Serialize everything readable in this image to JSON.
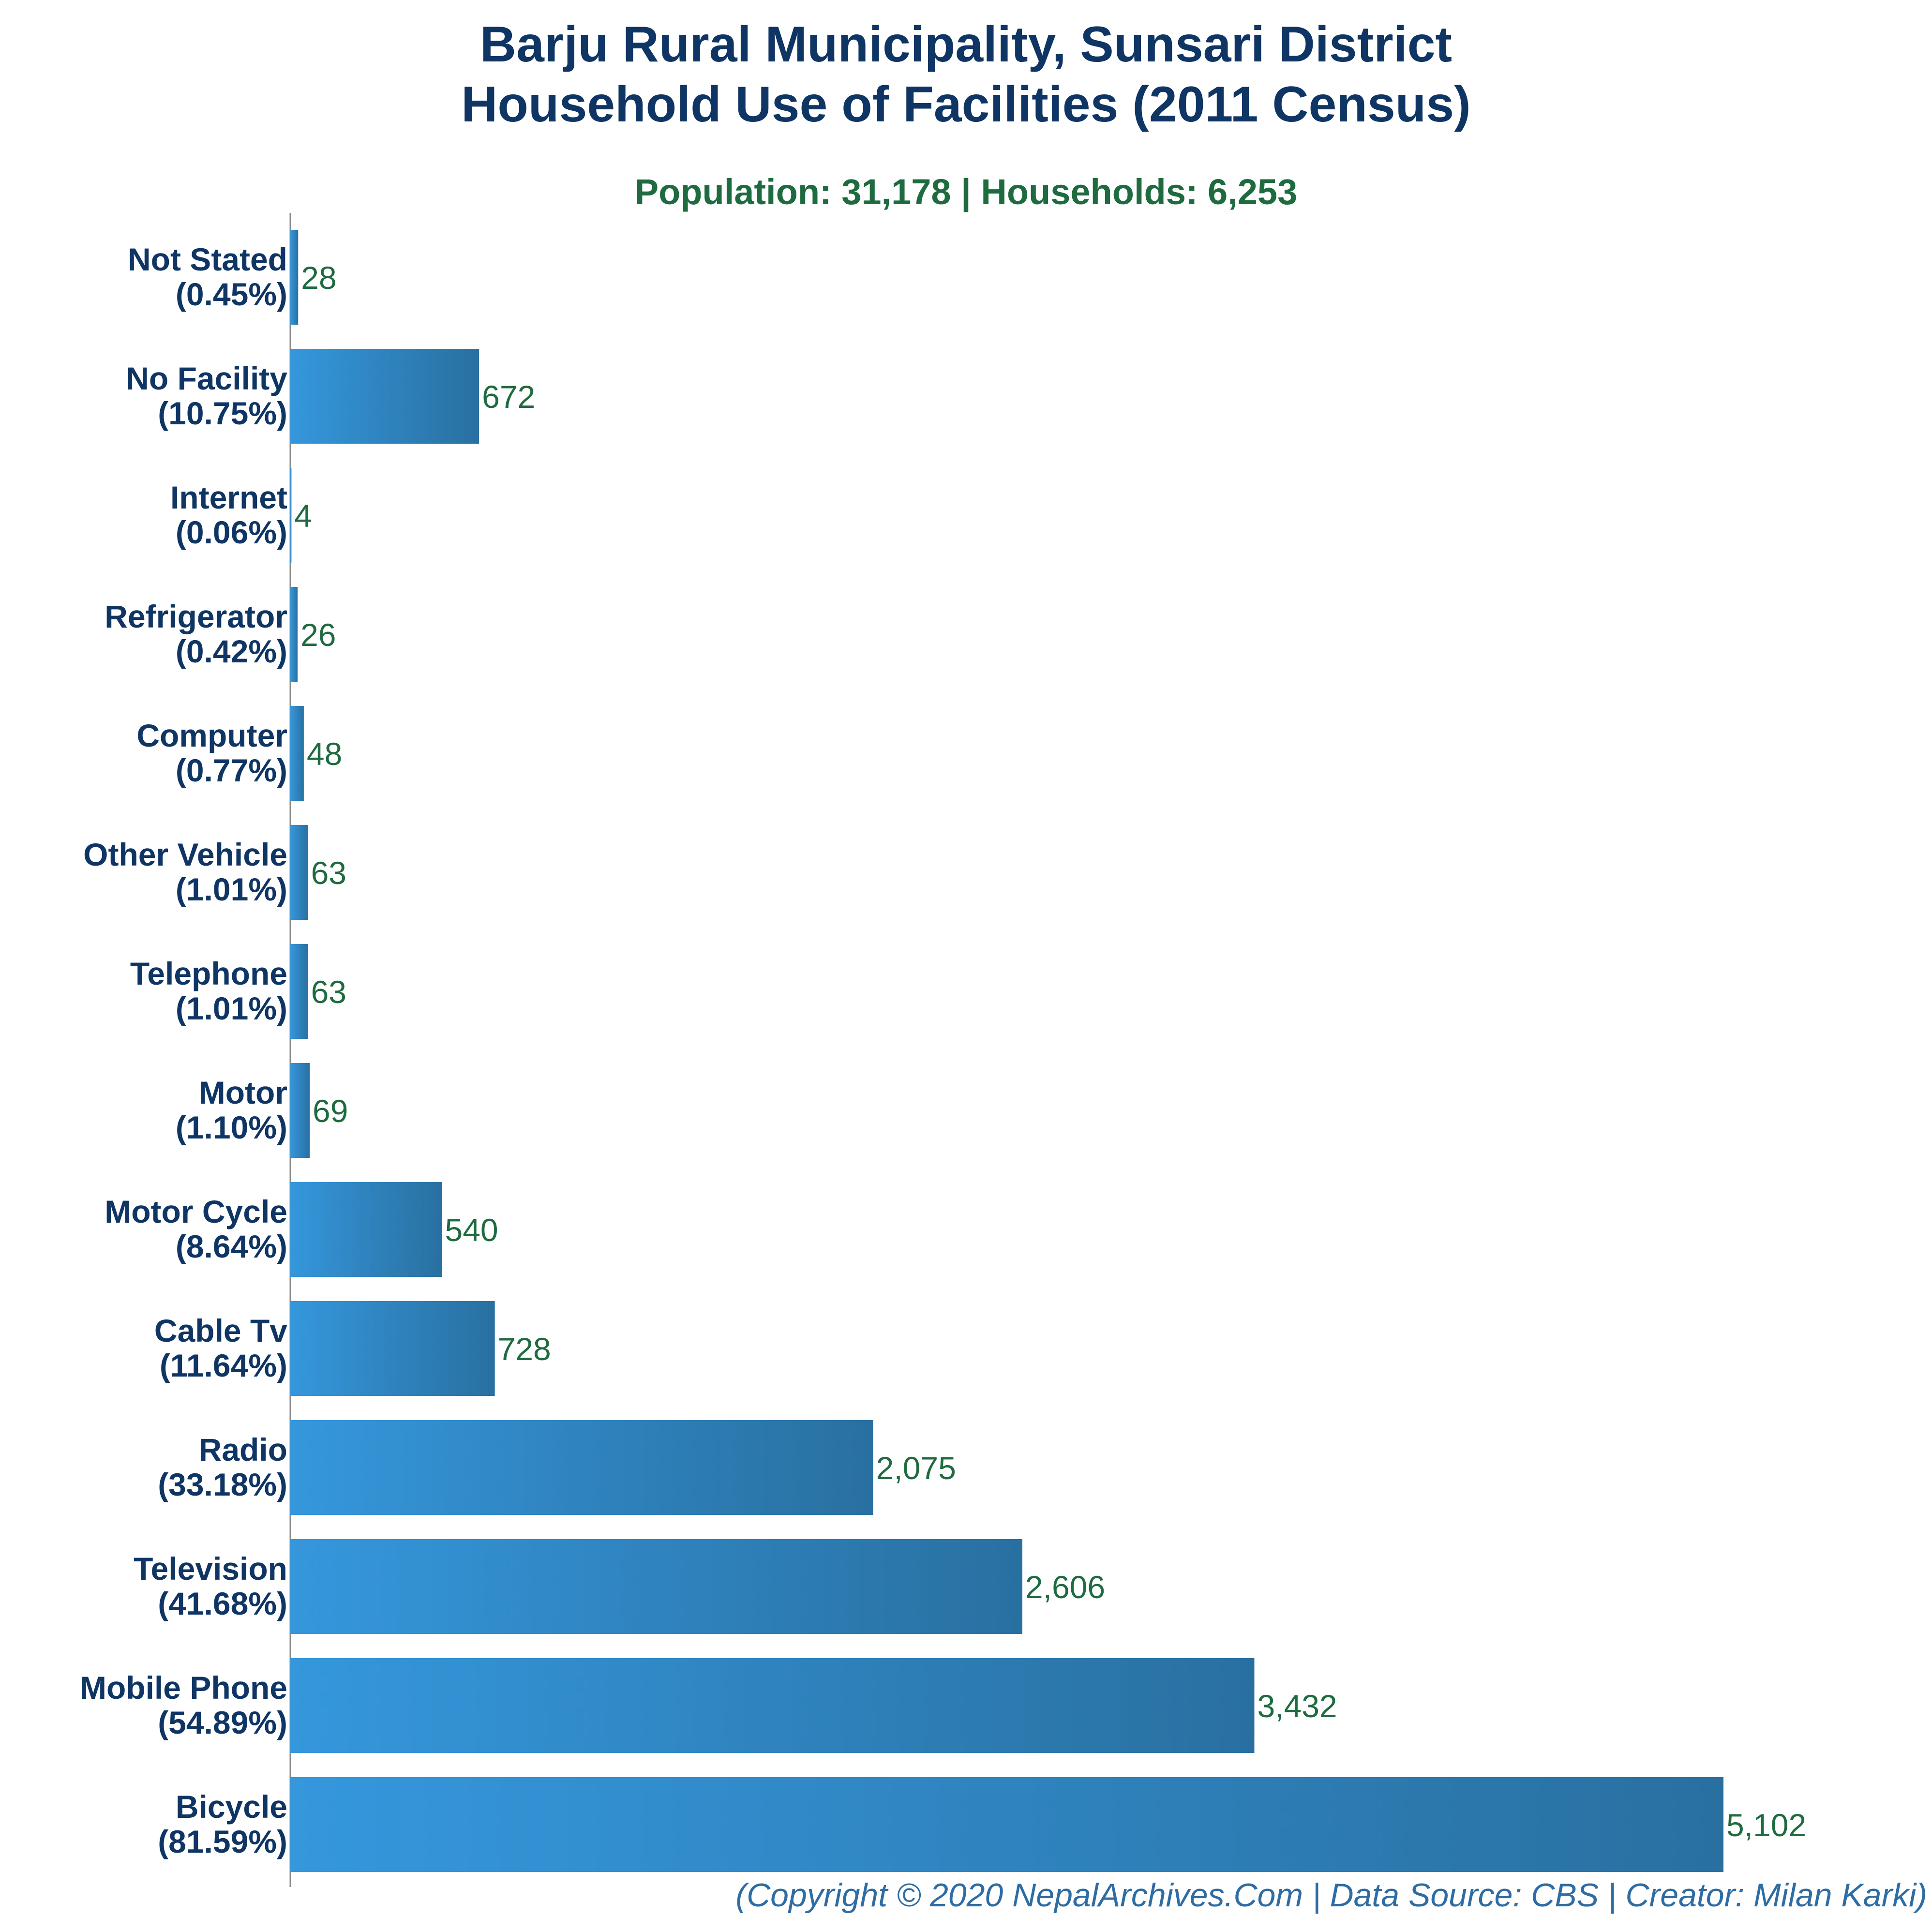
{
  "chart_data": {
    "type": "bar",
    "orientation": "horizontal",
    "title": "Barju Rural Municipality, Sunsari District",
    "title_line2": "Household Use of Facilities (2011 Census)",
    "subtitle": "Population: 31,178 | Households: 6,253",
    "categories": [
      "Not Stated",
      "No Facility",
      "Internet",
      "Refrigerator",
      "Computer",
      "Other Vehicle",
      "Telephone",
      "Motor",
      "Motor Cycle",
      "Cable Tv",
      "Radio",
      "Television",
      "Mobile Phone",
      "Bicycle"
    ],
    "percent_labels": [
      "(0.45%)",
      "(10.75%)",
      "(0.06%)",
      "(0.42%)",
      "(0.77%)",
      "(1.01%)",
      "(1.01%)",
      "(1.10%)",
      "(8.64%)",
      "(11.64%)",
      "(33.18%)",
      "(41.68%)",
      "(54.89%)",
      "(81.59%)"
    ],
    "values": [
      28,
      672,
      4,
      26,
      48,
      63,
      63,
      69,
      540,
      728,
      2075,
      2606,
      3432,
      5102
    ],
    "value_labels": [
      "28",
      "672",
      "4",
      "26",
      "48",
      "63",
      "63",
      "69",
      "540",
      "728",
      "2,075",
      "2,606",
      "3,432",
      "5,102"
    ],
    "xlim": [
      0,
      5102
    ],
    "grid": false,
    "legend": "none",
    "colors": {
      "title": "#0f3564",
      "subtitle": "#1f6b40",
      "category_label": "#0f3564",
      "value_label": "#1f6b40",
      "bar_gradient_start": "#3597dc",
      "bar_gradient_end": "#2970a1",
      "axis": "#888888",
      "footer": "#2e6ca4"
    }
  },
  "footer": "(Copyright © 2020 NepalArchives.Com | Data Source: CBS | Creator: Milan Karki)"
}
